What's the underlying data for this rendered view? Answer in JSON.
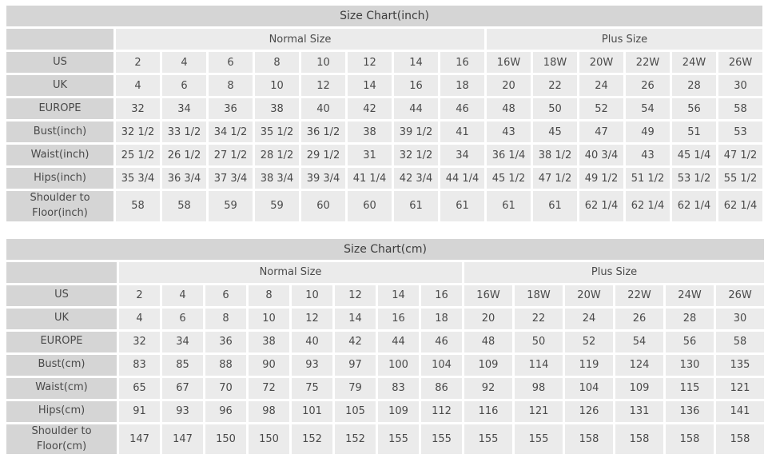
{
  "colors": {
    "title_bg": "#d5d5d5",
    "label_bg": "#d5d5d5",
    "cell_bg": "#ebebeb",
    "text": "#4a4a4a",
    "title_text": "#3d3d3d",
    "gap": "#ffffff"
  },
  "chart_data": [
    {
      "type": "table",
      "title": "Size Chart(inch)",
      "column_groups": [
        {
          "label": "Normal Size",
          "span": 8
        },
        {
          "label": "Plus Size",
          "span": 6
        }
      ],
      "rows": [
        {
          "label": "US",
          "values": [
            "2",
            "4",
            "6",
            "8",
            "10",
            "12",
            "14",
            "16",
            "16W",
            "18W",
            "20W",
            "22W",
            "24W",
            "26W"
          ]
        },
        {
          "label": "UK",
          "values": [
            "4",
            "6",
            "8",
            "10",
            "12",
            "14",
            "16",
            "18",
            "20",
            "22",
            "24",
            "26",
            "28",
            "30"
          ]
        },
        {
          "label": "EUROPE",
          "values": [
            "32",
            "34",
            "36",
            "38",
            "40",
            "42",
            "44",
            "46",
            "48",
            "50",
            "52",
            "54",
            "56",
            "58"
          ]
        },
        {
          "label": "Bust(inch)",
          "values": [
            "32 1/2",
            "33 1/2",
            "34 1/2",
            "35 1/2",
            "36 1/2",
            "38",
            "39 1/2",
            "41",
            "43",
            "45",
            "47",
            "49",
            "51",
            "53"
          ]
        },
        {
          "label": "Waist(inch)",
          "values": [
            "25 1/2",
            "26 1/2",
            "27 1/2",
            "28 1/2",
            "29 1/2",
            "31",
            "32 1/2",
            "34",
            "36 1/4",
            "38 1/2",
            "40 3/4",
            "43",
            "45 1/4",
            "47 1/2"
          ]
        },
        {
          "label": "Hips(inch)",
          "values": [
            "35 3/4",
            "36 3/4",
            "37 3/4",
            "38 3/4",
            "39 3/4",
            "41 1/4",
            "42 3/4",
            "44 1/4",
            "45 1/2",
            "47 1/2",
            "49 1/2",
            "51 1/2",
            "53 1/2",
            "55 1/2"
          ]
        },
        {
          "label": "Shoulder to\nFloor(inch)",
          "values": [
            "58",
            "58",
            "59",
            "59",
            "60",
            "60",
            "61",
            "61",
            "61",
            "61",
            "62 1/4",
            "62 1/4",
            "62 1/4",
            "62 1/4"
          ]
        }
      ]
    },
    {
      "type": "table",
      "title": "Size Chart(cm)",
      "column_groups": [
        {
          "label": "Normal Size",
          "span": 8
        },
        {
          "label": "Plus Size",
          "span": 6
        }
      ],
      "rows": [
        {
          "label": "US",
          "values": [
            "2",
            "4",
            "6",
            "8",
            "10",
            "12",
            "14",
            "16",
            "16W",
            "18W",
            "20W",
            "22W",
            "24W",
            "26W"
          ]
        },
        {
          "label": "UK",
          "values": [
            "4",
            "6",
            "8",
            "10",
            "12",
            "14",
            "16",
            "18",
            "20",
            "22",
            "24",
            "26",
            "28",
            "30"
          ]
        },
        {
          "label": "EUROPE",
          "values": [
            "32",
            "34",
            "36",
            "38",
            "40",
            "42",
            "44",
            "46",
            "48",
            "50",
            "52",
            "54",
            "56",
            "58"
          ]
        },
        {
          "label": "Bust(cm)",
          "values": [
            "83",
            "85",
            "88",
            "90",
            "93",
            "97",
            "100",
            "104",
            "109",
            "114",
            "119",
            "124",
            "130",
            "135"
          ]
        },
        {
          "label": "Waist(cm)",
          "values": [
            "65",
            "67",
            "70",
            "72",
            "75",
            "79",
            "83",
            "86",
            "92",
            "98",
            "104",
            "109",
            "115",
            "121"
          ]
        },
        {
          "label": "Hips(cm)",
          "values": [
            "91",
            "93",
            "96",
            "98",
            "101",
            "105",
            "109",
            "112",
            "116",
            "121",
            "126",
            "131",
            "136",
            "141"
          ]
        },
        {
          "label": "Shoulder to Floor(cm)",
          "values": [
            "147",
            "147",
            "150",
            "150",
            "152",
            "152",
            "155",
            "155",
            "155",
            "155",
            "158",
            "158",
            "158",
            "158"
          ]
        }
      ]
    }
  ]
}
